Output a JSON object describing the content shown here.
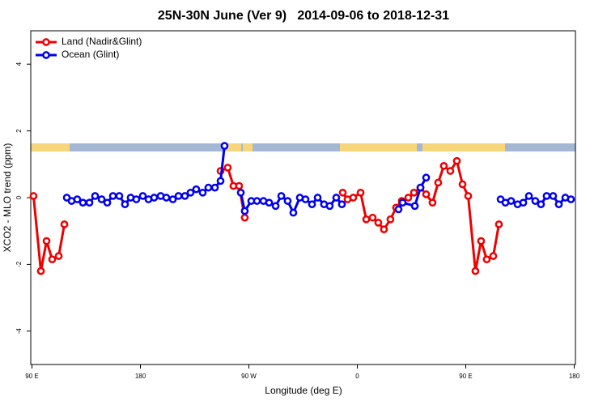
{
  "chart_data": {
    "type": "line",
    "title": "25N-30N June (Ver 9)   2014-09-06 to 2018-12-31",
    "xlabel": "Longitude (deg E)",
    "ylabel": "XCO2 - MLO trend (ppm)",
    "xlim": [
      89,
      541
    ],
    "ylim": [
      -5,
      5
    ],
    "xticks": [
      {
        "value": 90,
        "label": "90 E"
      },
      180,
      {
        "value": 270,
        "label": "90 W"
      },
      {
        "value": 360,
        "label": "0"
      },
      {
        "value": 450,
        "label": "90 E"
      },
      {
        "value": 540,
        "label": "180"
      }
    ],
    "yticks": [
      -4,
      -2,
      0,
      2,
      4
    ],
    "legend": "topleft",
    "series": [
      {
        "name": "Land (Nadir&Glint)",
        "color": "#ee0000",
        "x": [
          91.3,
          97.4,
          102.1,
          106.8,
          112.2,
          116.9,
          null,
          246.5,
          252.5,
          257.2,
          261.9,
          266.6,
          null,
          347.9,
          351.9,
          356.6,
          362.7,
          367.4,
          372.7,
          377.4,
          382.1,
          387.5,
          392.2,
          396.9,
          402.3,
          407.0,
          412.4,
          417.1,
          422.4,
          427.1,
          431.8,
          437.2,
          442.6,
          447.3,
          452.0,
          458.0,
          462.7,
          467.4,
          472.8,
          477.5
        ],
        "values": [
          0.05,
          -2.2,
          -1.3,
          -1.85,
          -1.75,
          -0.8,
          null,
          0.8,
          0.9,
          0.35,
          0.35,
          -0.6,
          null,
          0.15,
          -0.05,
          0,
          0.15,
          -0.65,
          -0.6,
          -0.75,
          -0.95,
          -0.65,
          -0.3,
          -0.1,
          0,
          0.15,
          0.3,
          0.1,
          -0.15,
          0.45,
          0.95,
          0.8,
          1.1,
          0.4,
          0.05,
          -2.2,
          -1.3,
          -1.85,
          -1.75,
          -0.8
        ]
      },
      {
        "name": "Ocean (Glint)",
        "color": "#0000ee",
        "x": [
          118.9,
          122.9,
          127.6,
          132.3,
          137.7,
          142.4,
          147.8,
          152.5,
          157.2,
          162.5,
          167.2,
          171.9,
          176.6,
          182.0,
          186.7,
          191.4,
          196.8,
          201.5,
          206.9,
          211.6,
          216.9,
          221.6,
          226.3,
          231.7,
          236.4,
          241.8,
          246.5,
          249.8,
          null,
          263.3,
          266.6,
          272.0,
          276.7,
          282.1,
          286.8,
          292.2,
          296.9,
          302.2,
          306.9,
          312.3,
          317.0,
          322.4,
          327.1,
          332.4,
          337.1,
          342.5,
          347.2,
          null,
          394.2,
          397.6,
          407.7,
          412.4,
          417.1,
          null,
          478.9,
          482.9,
          487.6,
          493.0,
          497.7,
          502.4,
          507.7,
          512.4,
          517.1,
          522.5,
          527.2,
          532.6,
          537.3
        ],
        "values": [
          0,
          -0.1,
          -0.05,
          -0.15,
          -0.15,
          0.05,
          -0.05,
          -0.15,
          0.05,
          0.05,
          -0.2,
          0,
          -0.05,
          0.05,
          -0.05,
          0,
          0.05,
          0,
          -0.05,
          0.05,
          0.05,
          0.15,
          0.25,
          0.15,
          0.3,
          0.3,
          0.5,
          1.55,
          null,
          0.15,
          -0.4,
          -0.1,
          -0.1,
          -0.1,
          -0.15,
          -0.25,
          0.05,
          -0.1,
          -0.45,
          0,
          -0.05,
          -0.2,
          0,
          -0.2,
          -0.25,
          0,
          -0.2,
          null,
          -0.35,
          -0.15,
          -0.25,
          0.3,
          0.6,
          null,
          -0.05,
          -0.15,
          -0.1,
          -0.2,
          -0.15,
          0.05,
          -0.1,
          -0.2,
          0.05,
          0.05,
          -0.2,
          0,
          -0.05
        ]
      }
    ]
  }
}
